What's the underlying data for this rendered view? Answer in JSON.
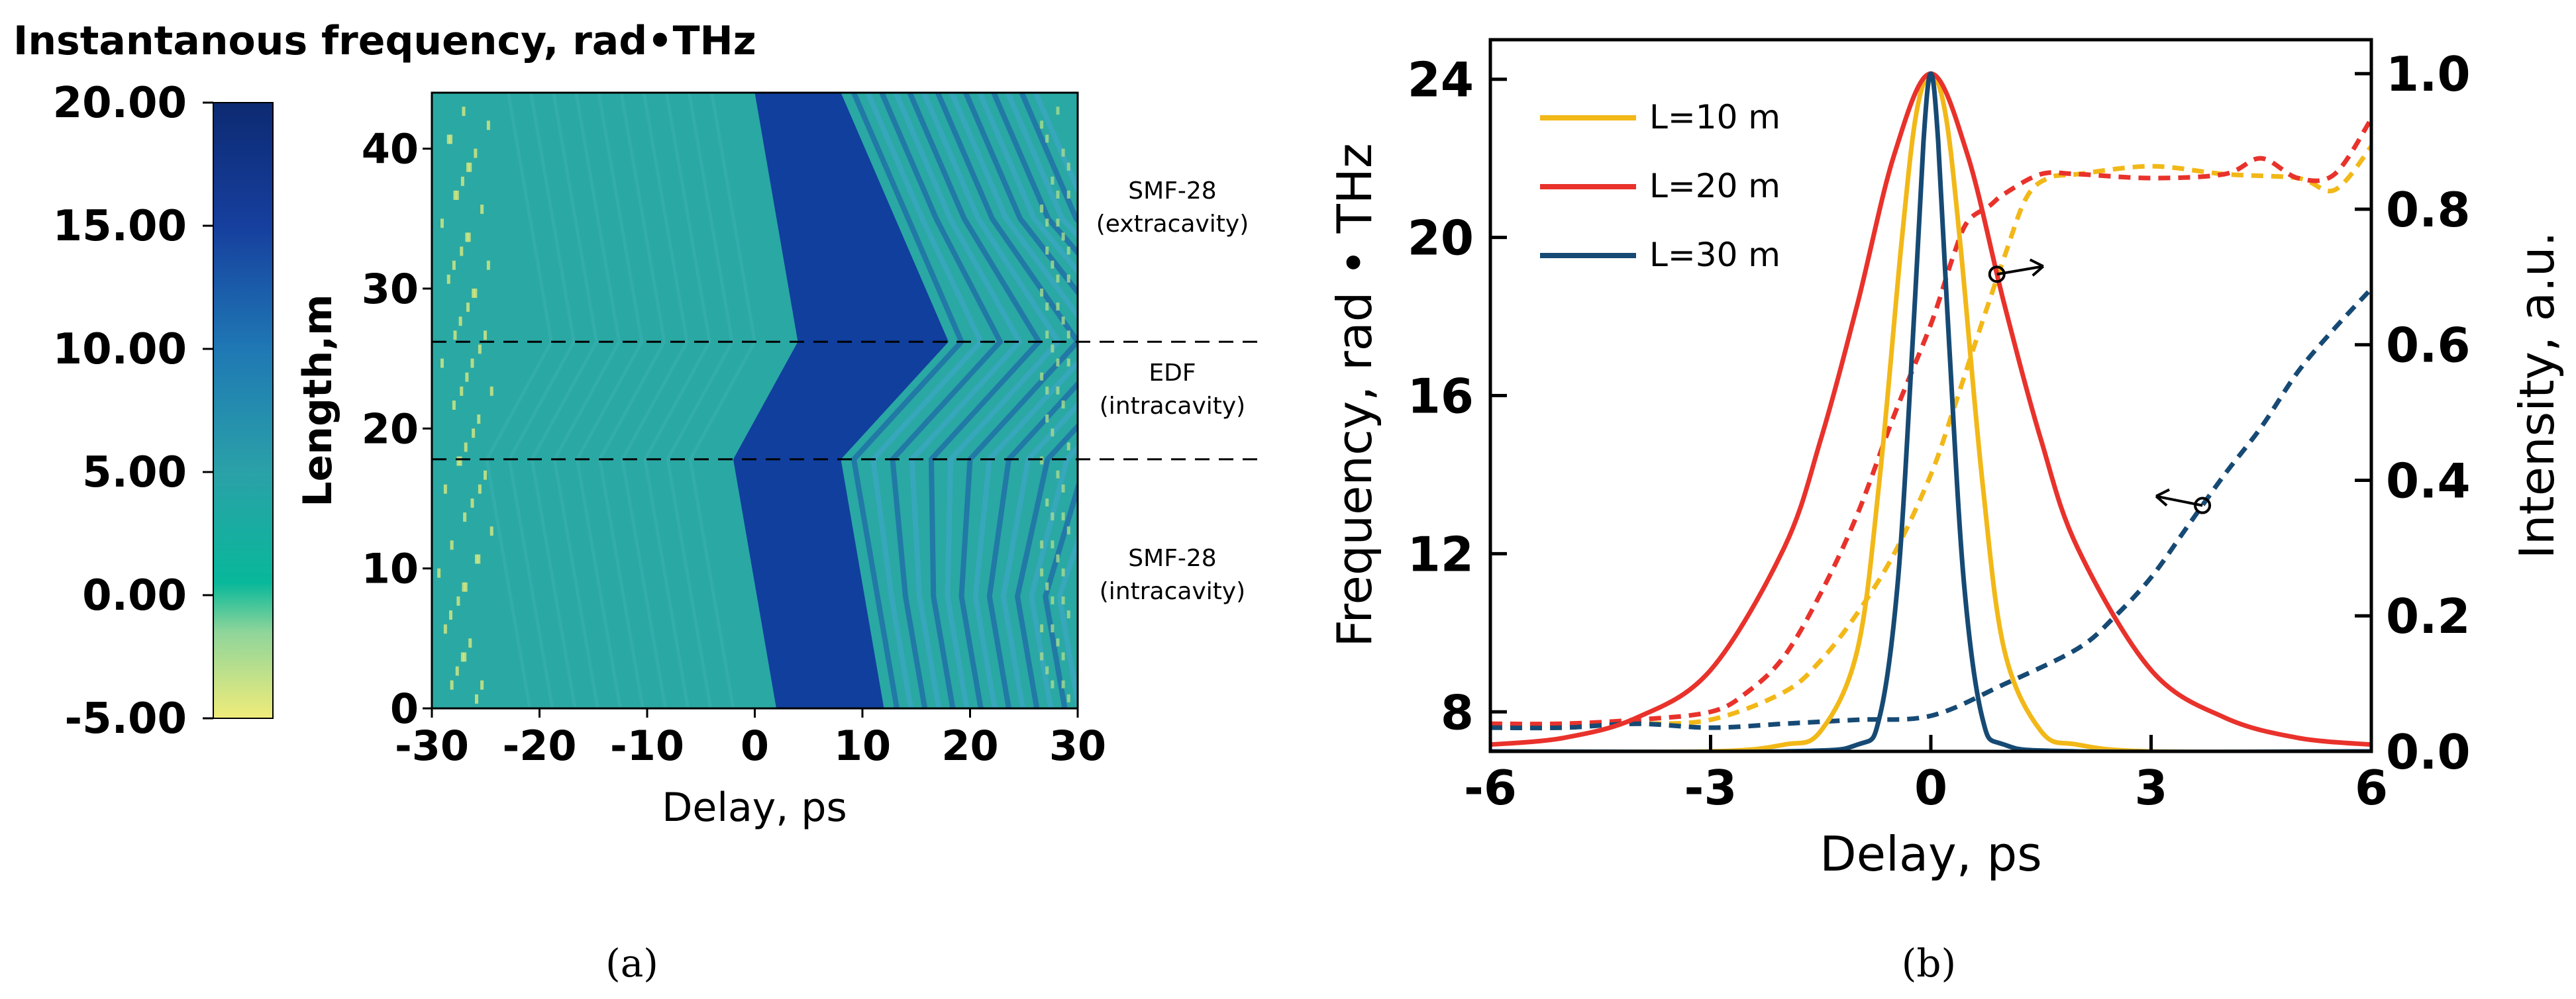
{
  "chart_data": [
    {
      "type": "heatmap",
      "panel_label": "(a)",
      "colorbar": {
        "title": "Instantanous frequency, rad•THz",
        "ticks": [
          "20.00",
          "15.00",
          "10.00",
          "5.00",
          "0.00",
          "-5.00"
        ],
        "range": [
          -5,
          20
        ],
        "colors": [
          "#f0ec7a",
          "#8fd59a",
          "#08b89a",
          "#2aa1a8",
          "#1f78b4",
          "#163f9e",
          "#0d2a72"
        ]
      },
      "xlabel": "Delay, ps",
      "ylabel": "Length,m",
      "xlim": [
        -30,
        30
      ],
      "ylim": [
        0,
        44
      ],
      "xticks": [
        "-30",
        "-20",
        "-10",
        "0",
        "10",
        "20",
        "30"
      ],
      "yticks": [
        "0",
        "10",
        "20",
        "30",
        "40"
      ],
      "boundaries_m": [
        17.8,
        26.2
      ],
      "sections": [
        {
          "name": "SMF-28",
          "detail": "(extracavity)"
        },
        {
          "name": "EDF",
          "detail": "(intracavity)"
        },
        {
          "name": "SMF-28",
          "detail": "(intracavity)"
        }
      ],
      "pulse_region": [
        {
          "length": 0,
          "left": 2,
          "right": 12
        },
        {
          "length": 17.8,
          "left": -2,
          "right": 8
        },
        {
          "length": 26.2,
          "left": 4,
          "right": 18
        },
        {
          "length": 44,
          "left": 0,
          "right": 8
        }
      ]
    },
    {
      "type": "line",
      "panel_label": "(b)",
      "xlabel": "Delay, ps",
      "ylabel_left": "Frequency, rad • THz",
      "ylabel_right": "Intensity, a.u.",
      "xlim": [
        -6,
        6
      ],
      "ylim_left": [
        7,
        25
      ],
      "ylim_right": [
        0,
        1.05
      ],
      "xticks": [
        "-6",
        "-3",
        "0",
        "3",
        "6"
      ],
      "yticks_left": [
        "8",
        "12",
        "16",
        "20",
        "24"
      ],
      "yticks_right": [
        "0.0",
        "0.2",
        "0.4",
        "0.6",
        "0.8",
        "1.0"
      ],
      "legend_position": "top-left",
      "series": [
        {
          "name": "L=10 m",
          "color": "#f2b818",
          "intensity": {
            "x": [
              -6,
              -3,
              -2,
              -1.5,
              -1,
              -0.7,
              -0.4,
              -0.2,
              0,
              0.2,
              0.4,
              0.7,
              1,
              1.5,
              2,
              3,
              6
            ],
            "y": [
              0,
              0,
              0.01,
              0.03,
              0.15,
              0.4,
              0.75,
              0.94,
              1,
              0.94,
              0.75,
              0.4,
              0.15,
              0.03,
              0.01,
              0,
              0
            ]
          },
          "frequency": {
            "x": [
              -6,
              -5,
              -4,
              -3,
              -2,
              -1.5,
              -1,
              -0.5,
              0,
              0.3,
              0.6,
              1,
              1.3,
              1.6,
              2,
              3,
              4,
              5,
              5.5,
              6
            ],
            "y": [
              7.6,
              7.7,
              7.7,
              7.8,
              8.5,
              9.3,
              10.5,
              12,
              14,
              15.6,
              17.3,
              19.5,
              21,
              21.5,
              21.6,
              21.8,
              21.6,
              21.5,
              21.2,
              22.3
            ]
          }
        },
        {
          "name": "L=20 m",
          "color": "#e8322b",
          "intensity": {
            "x": [
              -6,
              -5,
              -4,
              -3,
              -2,
              -1.5,
              -1,
              -0.5,
              0,
              0.5,
              1,
              1.5,
              2,
              3,
              4,
              5,
              6
            ],
            "y": [
              0.01,
              0.02,
              0.05,
              0.12,
              0.3,
              0.46,
              0.66,
              0.88,
              1,
              0.88,
              0.66,
              0.46,
              0.3,
              0.12,
              0.05,
              0.02,
              0.01
            ]
          },
          "frequency": {
            "x": [
              -6,
              -5,
              -4,
              -3,
              -2.5,
              -2,
              -1.5,
              -1,
              -0.5,
              0,
              0.3,
              0.5,
              0.8,
              1,
              1.5,
              2,
              3,
              4,
              4.5,
              5,
              5.5,
              6
            ],
            "y": [
              7.7,
              7.7,
              7.8,
              8,
              8.5,
              9.4,
              11,
              13,
              15.5,
              17.8,
              19.5,
              20.4,
              20.8,
              21.1,
              21.6,
              21.6,
              21.5,
              21.6,
              22,
              21.5,
              21.6,
              23
            ]
          }
        },
        {
          "name": "L=30 m",
          "color": "#164a74",
          "intensity": {
            "x": [
              -6,
              -2,
              -1,
              -0.7,
              -0.45,
              -0.25,
              -0.1,
              0,
              0.1,
              0.25,
              0.45,
              0.7,
              1,
              2,
              6
            ],
            "y": [
              0,
              0,
              0.01,
              0.05,
              0.25,
              0.6,
              0.9,
              1,
              0.9,
              0.6,
              0.25,
              0.05,
              0.01,
              0,
              0
            ]
          },
          "frequency": {
            "x": [
              -6,
              -5,
              -4,
              -3,
              -2,
              -1,
              0,
              1,
              2,
              2.5,
              3,
              3.5,
              4,
              4.5,
              5,
              5.5,
              6
            ],
            "y": [
              7.6,
              7.6,
              7.7,
              7.6,
              7.7,
              7.8,
              7.9,
              8.7,
              9.6,
              10.4,
              11.4,
              12.7,
              14,
              15.2,
              16.6,
              17.7,
              18.7
            ]
          }
        }
      ],
      "annotations": [
        {
          "series": "L=20 m",
          "at_x": 0.9,
          "axis": "right"
        },
        {
          "series": "L=30 m",
          "at_x": 3.7,
          "axis": "left"
        }
      ]
    }
  ]
}
